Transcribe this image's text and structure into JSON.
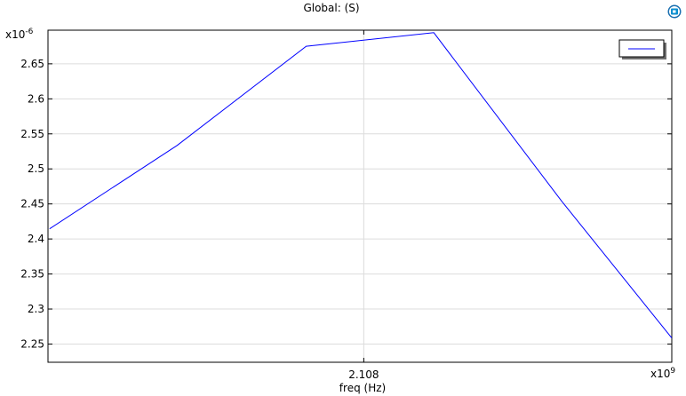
{
  "chart_data": {
    "type": "line",
    "title": "Global:  (S)",
    "xlabel": "freq (Hz)",
    "ylabel": "",
    "y_multiplier": "x10",
    "y_exponent": "-6",
    "x_multiplier": "x10",
    "x_exponent": "9",
    "xlim": [
      2.10597,
      2.10998
    ],
    "ylim": [
      2.224,
      2.698
    ],
    "x_ticks": [
      2.108
    ],
    "x_tick_labels": [
      "2.108"
    ],
    "y_ticks": [
      2.25,
      2.3,
      2.35,
      2.4,
      2.45,
      2.5,
      2.55,
      2.6,
      2.65
    ],
    "y_tick_labels": [
      "2.25",
      "2.3",
      "2.35",
      "2.4",
      "2.45",
      "2.5",
      "2.55",
      "2.6",
      "2.65"
    ],
    "grid": true,
    "legend_position": "top-right",
    "series": [
      {
        "x": [
          2.10598,
          2.1068,
          2.10763,
          2.10845,
          2.10927,
          2.1101
        ],
        "values": [
          2.4145,
          2.5335,
          2.675,
          2.6945,
          2.4545,
          2.2255
        ]
      }
    ],
    "colors": {
      "series": "#0000ff",
      "grid": "#dcdcdc",
      "axis": "#000000"
    }
  },
  "logo": {
    "icon": "comsol-logo-icon"
  }
}
